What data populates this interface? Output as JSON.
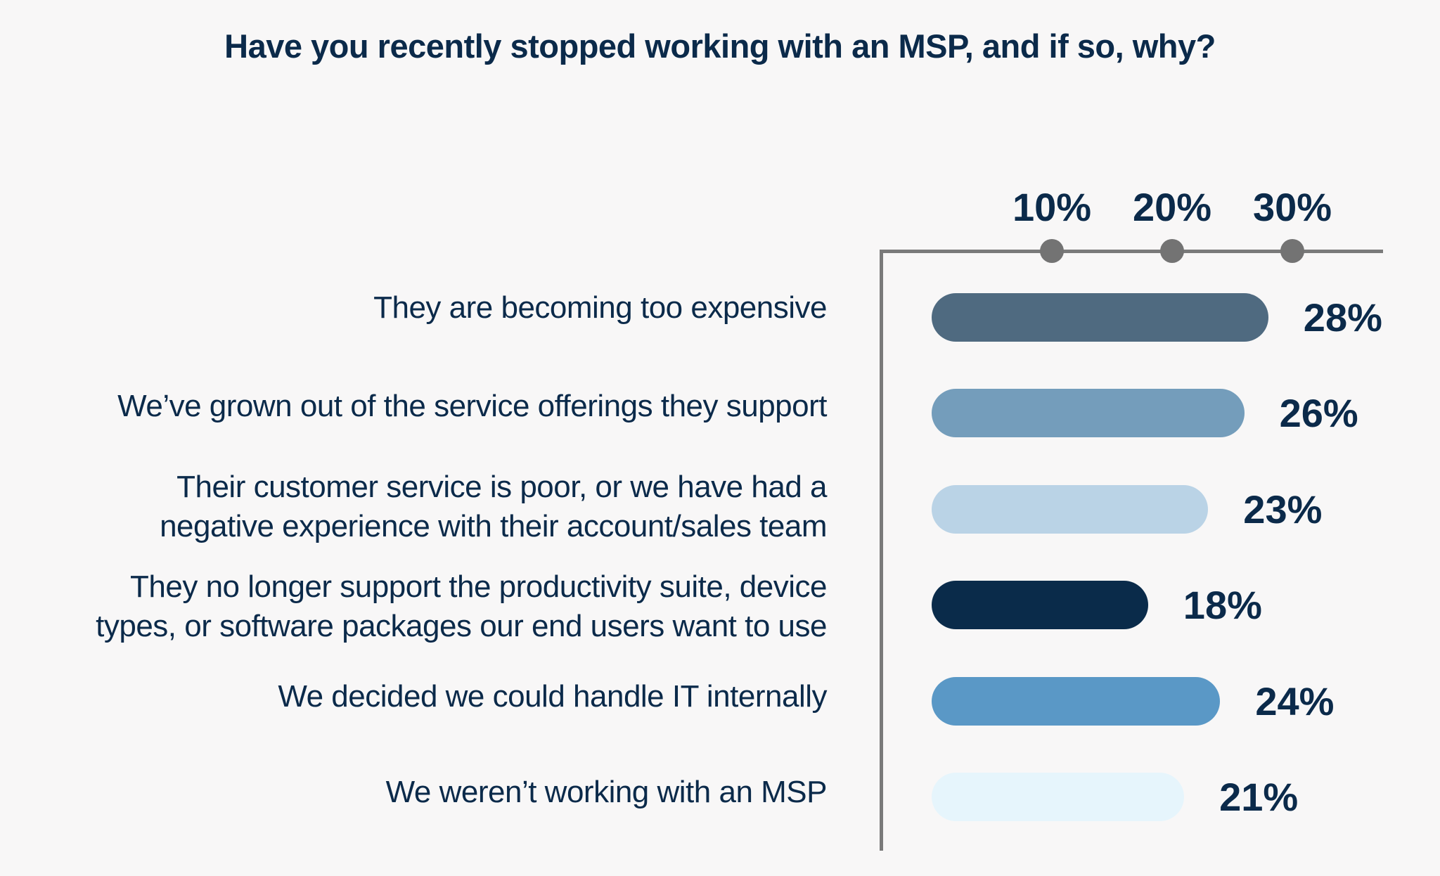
{
  "title": "Have you recently stopped working with an MSP, and if so, why?",
  "axis": {
    "ticks": [
      {
        "label": "10%",
        "value": 10
      },
      {
        "label": "20%",
        "value": 20
      },
      {
        "label": "30%",
        "value": 30
      }
    ]
  },
  "rows": [
    {
      "label": "They are becoming too expensive",
      "value_label": "28%",
      "value": 28,
      "color": "#4F6A80"
    },
    {
      "label": "We’ve grown out of the service offerings they support",
      "value_label": "26%",
      "value": 26,
      "color": "#749DBB"
    },
    {
      "label": "Their customer service is poor, or we have had a negative experience with their account/sales team",
      "line1": "Their customer service is poor, or we have had a",
      "line2": "negative experience with their account/sales team",
      "value_label": "23%",
      "value": 23,
      "color": "#BAD3E6"
    },
    {
      "label": "They no longer support the productivity suite, device types, or software packages our end users want to use",
      "line1": "They no longer support the productivity suite, device",
      "line2": "types, or software packages our end users want to use",
      "value_label": "18%",
      "value": 18,
      "color": "#0A2B4A"
    },
    {
      "label": "We decided we could handle IT internally",
      "value_label": "24%",
      "value": 24,
      "color": "#5A98C6"
    },
    {
      "label": "We weren’t working with an MSP",
      "value_label": "21%",
      "value": 21,
      "color": "#E6F5FC"
    }
  ],
  "colors": {
    "text": "#0B2A4A",
    "axis": "#7A7A7A",
    "background": "#F8F7F7"
  },
  "chart_data": {
    "type": "bar",
    "orientation": "horizontal",
    "title": "Have you recently stopped working with an MSP, and if so, why?",
    "categories": [
      "They are becoming too expensive",
      "We’ve grown out of the service offerings they support",
      "Their customer service is poor, or we have had a negative experience with their account/sales team",
      "They no longer support the productivity suite, device types, or software packages our end users want to use",
      "We decided we could handle IT internally",
      "We weren’t working with an MSP"
    ],
    "values": [
      28,
      26,
      23,
      18,
      24,
      21
    ],
    "value_labels": [
      "28%",
      "26%",
      "23%",
      "18%",
      "24%",
      "21%"
    ],
    "xlabel": "",
    "ylabel": "",
    "xticks": [
      "10%",
      "20%",
      "30%"
    ],
    "xlim": [
      0,
      37
    ],
    "axis_position": "top",
    "grid": false,
    "legend": null
  }
}
